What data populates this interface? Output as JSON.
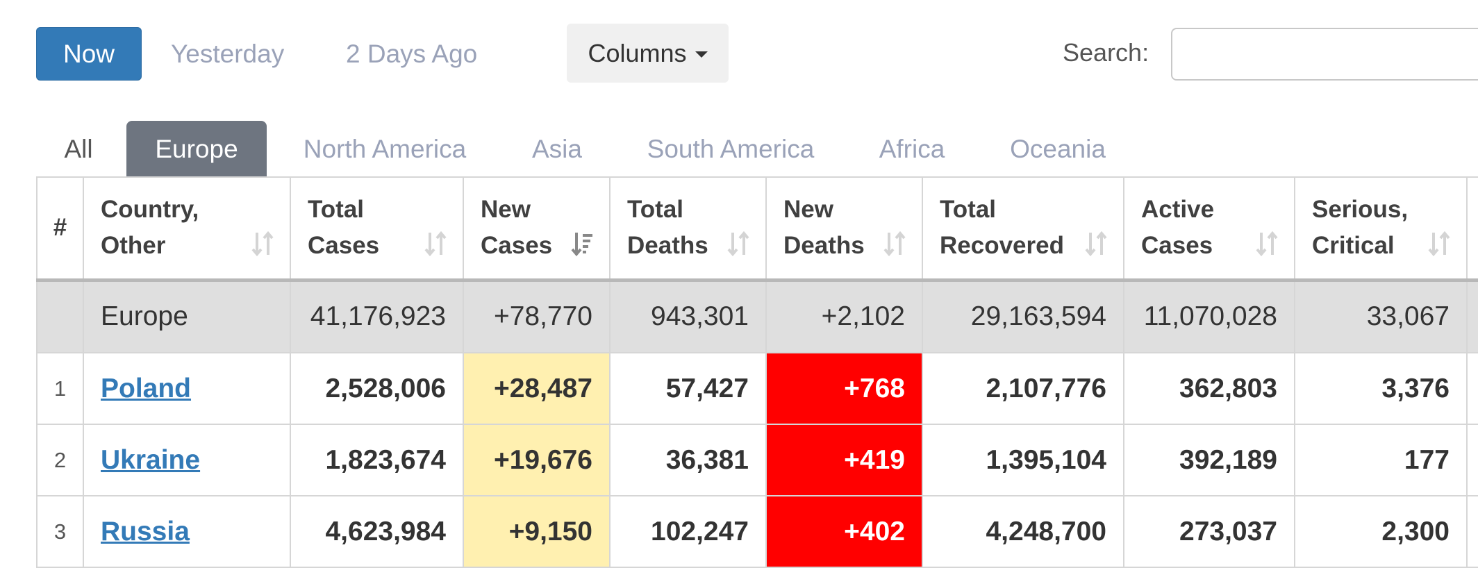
{
  "toolbar": {
    "now_label": "Now",
    "yesterday_label": "Yesterday",
    "two_days_label": "2 Days Ago",
    "columns_label": "Columns",
    "search_label": "Search:",
    "search_value": ""
  },
  "tabs": [
    "All",
    "Europe",
    "North America",
    "Asia",
    "South America",
    "Africa",
    "Oceania"
  ],
  "active_tab": "Europe",
  "table": {
    "headers": {
      "num": "#",
      "country": [
        "Country,",
        "Other"
      ],
      "total_cases": [
        "Total",
        "Cases"
      ],
      "new_cases": [
        "New",
        "Cases"
      ],
      "total_deaths": [
        "Total",
        "Deaths"
      ],
      "new_deaths": [
        "New",
        "Deaths"
      ],
      "total_recovered": [
        "Total",
        "Recovered"
      ],
      "active_cases": [
        "Active",
        "Cases"
      ],
      "serious": [
        "Serious,",
        "Critical"
      ]
    },
    "continent_row": {
      "name": "Europe",
      "total_cases": "41,176,923",
      "new_cases": "+78,770",
      "total_deaths": "943,301",
      "new_deaths": "+2,102",
      "total_recovered": "29,163,594",
      "active_cases": "11,070,028",
      "serious": "33,067"
    },
    "rows": [
      {
        "num": "1",
        "country": "Poland",
        "total_cases": "2,528,006",
        "new_cases": "+28,487",
        "total_deaths": "57,427",
        "new_deaths": "+768",
        "total_recovered": "2,107,776",
        "active_cases": "362,803",
        "serious": "3,376"
      },
      {
        "num": "2",
        "country": "Ukraine",
        "total_cases": "1,823,674",
        "new_cases": "+19,676",
        "total_deaths": "36,381",
        "new_deaths": "+419",
        "total_recovered": "1,395,104",
        "active_cases": "392,189",
        "serious": "177"
      },
      {
        "num": "3",
        "country": "Russia",
        "total_cases": "4,623,984",
        "new_cases": "+9,150",
        "total_deaths": "102,247",
        "new_deaths": "+402",
        "total_recovered": "4,248,700",
        "active_cases": "273,037",
        "serious": "2,300"
      }
    ]
  },
  "colors": {
    "primary": "#337ab7",
    "new_cases_bg": "#fff0b0",
    "new_deaths_bg": "#ff0000",
    "active_tab_bg": "#6e7580"
  },
  "icons": {
    "sort": "sort-icon",
    "sort_active": "sort-desc-icon",
    "caret": "caret-down-icon"
  }
}
